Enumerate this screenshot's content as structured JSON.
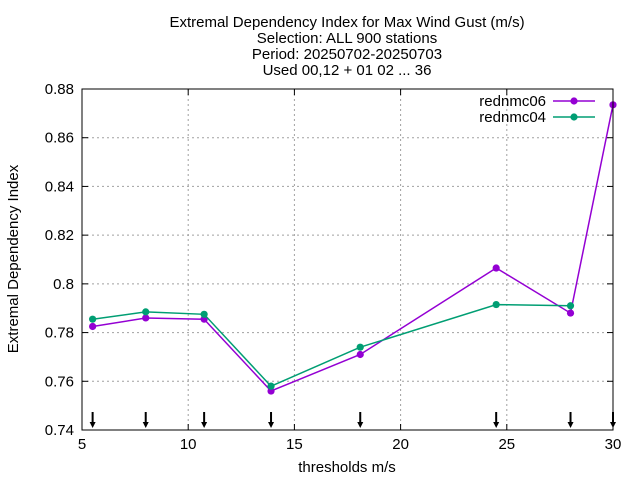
{
  "chart_data": {
    "type": "line",
    "title_lines": [
      "Extremal Dependency Index  for Max Wind Gust (m/s)",
      "Selection: ALL    900 stations",
      "Period: 20250702-20250703",
      "Used 00,12 + 01 02 ... 36"
    ],
    "xlabel": "thresholds m/s",
    "ylabel": "Extremal Dependency Index",
    "xlim": [
      5,
      30
    ],
    "ylim": [
      0.74,
      0.88
    ],
    "xticks": [
      5,
      10,
      15,
      20,
      25,
      30
    ],
    "yticks": [
      0.74,
      0.76,
      0.78,
      0.8,
      0.82,
      0.84,
      0.86,
      0.88
    ],
    "ytick_labels": [
      "0.74",
      "0.76",
      "0.78",
      "0.8",
      "0.82",
      "0.84",
      "0.86",
      "0.88"
    ],
    "grid": true,
    "legend_position": "top-right",
    "threshold_markers": [
      5.5,
      8,
      10.75,
      13.9,
      18.1,
      24.5,
      28,
      30
    ],
    "series": [
      {
        "name": "rednmc06",
        "color": "#9400d3",
        "marker": "filled-circle",
        "x": [
          5.5,
          8,
          10.75,
          13.9,
          18.1,
          24.5,
          28,
          30
        ],
        "y": [
          0.7825,
          0.786,
          0.7855,
          0.756,
          0.771,
          0.8065,
          0.788,
          0.8735
        ]
      },
      {
        "name": "rednmc04",
        "color": "#009e73",
        "marker": "filled-circle",
        "x": [
          5.5,
          8,
          10.75,
          13.9,
          18.1,
          24.5,
          28
        ],
        "y": [
          0.7855,
          0.7885,
          0.7875,
          0.758,
          0.774,
          0.7915,
          0.791
        ]
      }
    ]
  }
}
